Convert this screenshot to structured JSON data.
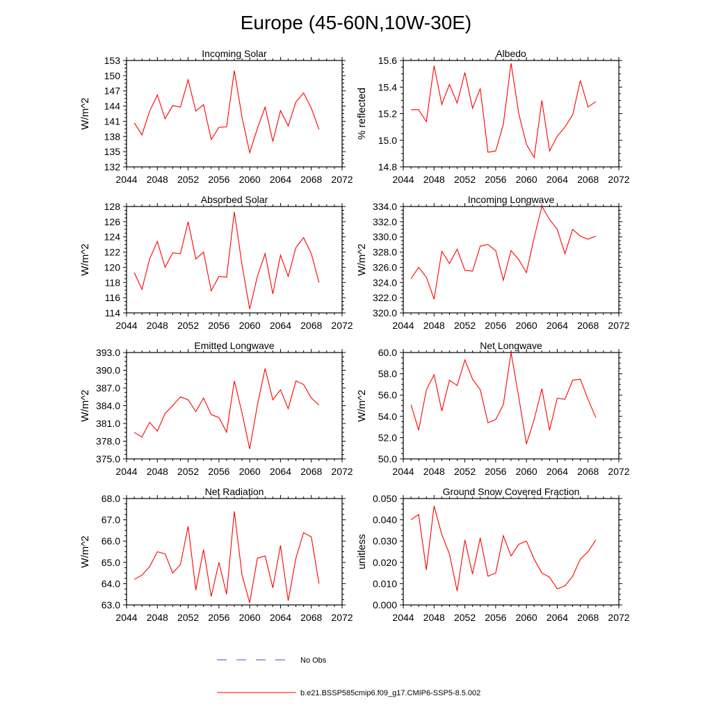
{
  "figure": {
    "title": "Europe (45-60N,10W-30E)"
  },
  "legend": {
    "items": [
      {
        "label": "No Obs",
        "color": "#4a4ab0",
        "style": "dashed"
      },
      {
        "label": "b.e21.BSSP585cmip6.f09_g17.CMIP6-SSP5-8.5.002",
        "color": "#ff0000",
        "style": "solid"
      }
    ]
  },
  "chart_data": [
    {
      "type": "line",
      "title": "Incoming Solar",
      "xlabel": "",
      "ylabel": "W/m^2",
      "xlim": [
        2044,
        2072
      ],
      "xticks": [
        "2044",
        "2048",
        "2052",
        "2056",
        "2060",
        "2064",
        "2068",
        "2072"
      ],
      "ylim": [
        132,
        153
      ],
      "yticks": [
        "132",
        "135",
        "138",
        "141",
        "144",
        "147",
        "150",
        "153"
      ],
      "series": [
        {
          "color": "#ff0000",
          "x": [
            2045,
            2046,
            2047,
            2048,
            2049,
            2050,
            2051,
            2052,
            2053,
            2054,
            2055,
            2056,
            2057,
            2058,
            2059,
            2060,
            2061,
            2062,
            2063,
            2064,
            2065,
            2066,
            2067,
            2068,
            2069
          ],
          "values": [
            140.7,
            138.3,
            143.0,
            146.2,
            141.5,
            144.1,
            143.8,
            149.2,
            143.0,
            144.3,
            137.4,
            139.8,
            139.9,
            151.0,
            141.8,
            134.8,
            139.6,
            143.8,
            137.0,
            143.1,
            140.1,
            144.8,
            146.6,
            143.6,
            139.4
          ]
        }
      ]
    },
    {
      "type": "line",
      "title": "Albedo",
      "xlabel": "",
      "ylabel": "% reflected",
      "xlim": [
        2044,
        2072
      ],
      "xticks": [
        "2044",
        "2048",
        "2052",
        "2056",
        "2060",
        "2064",
        "2068",
        "2072"
      ],
      "ylim": [
        14.8,
        15.6
      ],
      "yticks": [
        "14.8",
        "15.0",
        "15.2",
        "15.4",
        "15.6"
      ],
      "series": [
        {
          "color": "#ff0000",
          "x": [
            2045,
            2046,
            2047,
            2048,
            2049,
            2050,
            2051,
            2052,
            2053,
            2054,
            2055,
            2056,
            2057,
            2058,
            2059,
            2060,
            2061,
            2062,
            2063,
            2064,
            2065,
            2066,
            2067,
            2068,
            2069
          ],
          "values": [
            15.23,
            15.23,
            15.14,
            15.56,
            15.27,
            15.42,
            15.28,
            15.51,
            15.24,
            15.39,
            14.91,
            14.92,
            15.12,
            15.58,
            15.2,
            14.97,
            14.87,
            15.3,
            14.92,
            15.03,
            15.1,
            15.19,
            15.45,
            15.25,
            15.29
          ]
        }
      ]
    },
    {
      "type": "line",
      "title": "Absorbed Solar",
      "xlabel": "",
      "ylabel": "W/m^2",
      "xlim": [
        2044,
        2072
      ],
      "xticks": [
        "2044",
        "2048",
        "2052",
        "2056",
        "2060",
        "2064",
        "2068",
        "2072"
      ],
      "ylim": [
        114,
        128
      ],
      "yticks": [
        "114",
        "116",
        "118",
        "120",
        "122",
        "124",
        "126",
        "128"
      ],
      "series": [
        {
          "color": "#ff0000",
          "x": [
            2045,
            2046,
            2047,
            2048,
            2049,
            2050,
            2051,
            2052,
            2053,
            2054,
            2055,
            2056,
            2057,
            2058,
            2059,
            2060,
            2061,
            2062,
            2063,
            2064,
            2065,
            2066,
            2067,
            2068,
            2069
          ],
          "values": [
            119.3,
            117.1,
            121.1,
            123.4,
            120.0,
            121.9,
            121.8,
            126.0,
            121.1,
            122.0,
            116.9,
            118.8,
            118.7,
            127.3,
            120.3,
            114.5,
            118.8,
            121.8,
            116.5,
            121.6,
            118.8,
            122.6,
            123.9,
            121.8,
            118.0
          ]
        }
      ]
    },
    {
      "type": "line",
      "title": "Incoming Longwave",
      "xlabel": "",
      "ylabel": "W/m^2",
      "xlim": [
        2044,
        2072
      ],
      "xticks": [
        "2044",
        "2048",
        "2052",
        "2056",
        "2060",
        "2064",
        "2068",
        "2072"
      ],
      "ylim": [
        320.0,
        334.0
      ],
      "yticks": [
        "320.0",
        "322.0",
        "324.0",
        "326.0",
        "328.0",
        "330.0",
        "332.0",
        "334.0"
      ],
      "series": [
        {
          "color": "#ff0000",
          "x": [
            2045,
            2046,
            2047,
            2048,
            2049,
            2050,
            2051,
            2052,
            2053,
            2054,
            2055,
            2056,
            2057,
            2058,
            2059,
            2060,
            2061,
            2062,
            2063,
            2064,
            2065,
            2066,
            2067,
            2068,
            2069
          ],
          "values": [
            324.5,
            326.0,
            324.7,
            321.8,
            328.1,
            326.5,
            328.4,
            325.6,
            325.5,
            328.8,
            329.0,
            328.2,
            324.3,
            328.2,
            327.0,
            325.3,
            329.9,
            334.0,
            332.3,
            331.0,
            327.8,
            331.0,
            330.1,
            329.7,
            330.1
          ]
        }
      ]
    },
    {
      "type": "line",
      "title": "Emitted Longwave",
      "xlabel": "",
      "ylabel": "W/m^2",
      "xlim": [
        2044,
        2072
      ],
      "xticks": [
        "2044",
        "2048",
        "2052",
        "2056",
        "2060",
        "2064",
        "2068",
        "2072"
      ],
      "ylim": [
        375.0,
        393.0
      ],
      "yticks": [
        "375.0",
        "378.0",
        "381.0",
        "384.0",
        "387.0",
        "390.0",
        "393.0"
      ],
      "series": [
        {
          "color": "#ff0000",
          "x": [
            2045,
            2046,
            2047,
            2048,
            2049,
            2050,
            2051,
            2052,
            2053,
            2054,
            2055,
            2056,
            2057,
            2058,
            2059,
            2060,
            2061,
            2062,
            2063,
            2064,
            2065,
            2066,
            2067,
            2068,
            2069
          ],
          "values": [
            379.5,
            378.7,
            381.2,
            379.7,
            382.7,
            384.0,
            385.5,
            385.0,
            383.0,
            385.3,
            382.5,
            382.0,
            379.5,
            388.2,
            382.8,
            376.7,
            384.1,
            390.3,
            385.0,
            386.7,
            383.5,
            388.2,
            387.6,
            385.3,
            384.1
          ]
        }
      ]
    },
    {
      "type": "line",
      "title": "Net Longwave",
      "xlabel": "",
      "ylabel": "W/m^2",
      "xlim": [
        2044,
        2072
      ],
      "xticks": [
        "2044",
        "2048",
        "2052",
        "2056",
        "2060",
        "2064",
        "2068",
        "2072"
      ],
      "ylim": [
        50.0,
        60.0
      ],
      "yticks": [
        "50.0",
        "52.0",
        "54.0",
        "56.0",
        "58.0",
        "60.0"
      ],
      "series": [
        {
          "color": "#ff0000",
          "x": [
            2045,
            2046,
            2047,
            2048,
            2049,
            2050,
            2051,
            2052,
            2053,
            2054,
            2055,
            2056,
            2057,
            2058,
            2059,
            2060,
            2061,
            2062,
            2063,
            2064,
            2065,
            2066,
            2067,
            2068,
            2069
          ],
          "values": [
            55.1,
            52.7,
            56.5,
            57.9,
            54.5,
            57.4,
            56.9,
            59.3,
            57.5,
            56.5,
            53.4,
            53.7,
            55.1,
            60.0,
            55.8,
            51.4,
            53.7,
            56.6,
            52.7,
            55.7,
            55.6,
            57.4,
            57.5,
            55.6,
            53.9
          ]
        }
      ]
    },
    {
      "type": "line",
      "title": "Net Radiation",
      "xlabel": "",
      "ylabel": "W/m^2",
      "xlim": [
        2044,
        2072
      ],
      "xticks": [
        "2044",
        "2048",
        "2052",
        "2056",
        "2060",
        "2064",
        "2068",
        "2072"
      ],
      "ylim": [
        63.0,
        68.0
      ],
      "yticks": [
        "63.0",
        "64.0",
        "65.0",
        "66.0",
        "67.0",
        "68.0"
      ],
      "series": [
        {
          "color": "#ff0000",
          "x": [
            2045,
            2046,
            2047,
            2048,
            2049,
            2050,
            2051,
            2052,
            2053,
            2054,
            2055,
            2056,
            2057,
            2058,
            2059,
            2060,
            2061,
            2062,
            2063,
            2064,
            2065,
            2066,
            2067,
            2068,
            2069
          ],
          "values": [
            64.2,
            64.4,
            64.8,
            65.5,
            65.4,
            64.5,
            64.9,
            66.7,
            63.7,
            65.6,
            63.4,
            65.0,
            63.5,
            67.4,
            64.4,
            63.1,
            65.2,
            65.3,
            63.8,
            65.8,
            63.2,
            65.2,
            66.4,
            66.2,
            64.0
          ]
        }
      ]
    },
    {
      "type": "line",
      "title": "Ground Snow Covered Fraction",
      "xlabel": "",
      "ylabel": "unitless",
      "xlim": [
        2044,
        2072
      ],
      "xticks": [
        "2044",
        "2048",
        "2052",
        "2056",
        "2060",
        "2064",
        "2068",
        "2072"
      ],
      "ylim": [
        0.0,
        0.05
      ],
      "yticks": [
        "0.000",
        "0.010",
        "0.020",
        "0.030",
        "0.040",
        "0.050"
      ],
      "series": [
        {
          "color": "#ff0000",
          "x": [
            2045,
            2046,
            2047,
            2048,
            2049,
            2050,
            2051,
            2052,
            2053,
            2054,
            2055,
            2056,
            2057,
            2058,
            2059,
            2060,
            2061,
            2062,
            2063,
            2064,
            2065,
            2066,
            2067,
            2068,
            2069
          ],
          "values": [
            0.04,
            0.0425,
            0.0165,
            0.0465,
            0.033,
            0.024,
            0.0065,
            0.0305,
            0.0145,
            0.0315,
            0.0135,
            0.015,
            0.0325,
            0.023,
            0.0285,
            0.03,
            0.0215,
            0.015,
            0.013,
            0.0075,
            0.009,
            0.0135,
            0.0215,
            0.025,
            0.0305
          ]
        }
      ]
    }
  ]
}
